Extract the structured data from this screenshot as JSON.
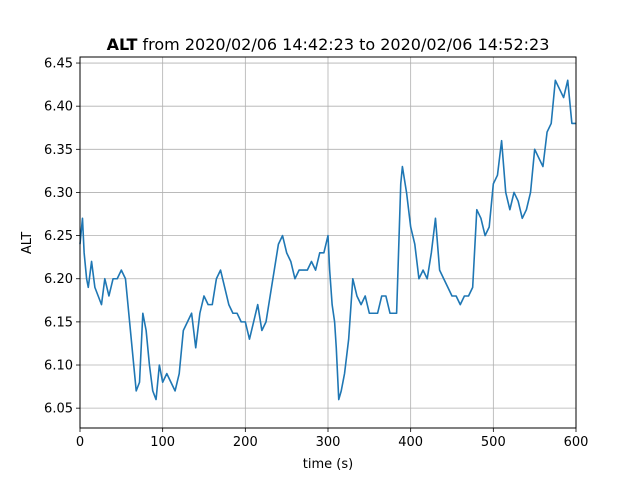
{
  "chart_data": {
    "type": "line",
    "title_bold": "ALT",
    "title_rest": " from 2020/02/06 14:42:23 to 2020/02/06 14:52:23",
    "xlabel": "time (s)",
    "ylabel": "ALT",
    "xlim": [
      0,
      600
    ],
    "ylim": [
      6.027,
      6.457
    ],
    "grid": true,
    "x_ticks": [
      0,
      100,
      200,
      300,
      400,
      500,
      600
    ],
    "x_tick_labels": [
      "0",
      "100",
      "200",
      "300",
      "400",
      "500",
      "600"
    ],
    "y_ticks": [
      6.05,
      6.1,
      6.15,
      6.2,
      6.25,
      6.3,
      6.35,
      6.4,
      6.45
    ],
    "y_tick_labels": [
      "6.05",
      "6.10",
      "6.15",
      "6.20",
      "6.25",
      "6.30",
      "6.35",
      "6.40",
      "6.45"
    ],
    "series": [
      {
        "color": "#1f77b4",
        "x": [
          0,
          3,
          5,
          8,
          10,
          14,
          18,
          22,
          26,
          30,
          35,
          40,
          45,
          50,
          55,
          60,
          65,
          68,
          72,
          76,
          80,
          84,
          88,
          92,
          96,
          100,
          105,
          110,
          115,
          120,
          125,
          130,
          135,
          140,
          145,
          150,
          155,
          160,
          165,
          170,
          175,
          180,
          185,
          190,
          195,
          200,
          205,
          210,
          215,
          220,
          225,
          230,
          235,
          240,
          245,
          250,
          255,
          260,
          265,
          270,
          275,
          280,
          285,
          290,
          295,
          300,
          302,
          305,
          308,
          310,
          313,
          316,
          320,
          325,
          330,
          335,
          340,
          345,
          350,
          355,
          360,
          365,
          370,
          375,
          380,
          383,
          386,
          388,
          390,
          395,
          400,
          405,
          410,
          415,
          420,
          425,
          430,
          435,
          440,
          445,
          450,
          455,
          460,
          465,
          470,
          475,
          480,
          485,
          490,
          495,
          500,
          505,
          510,
          515,
          520,
          525,
          530,
          535,
          540,
          545,
          550,
          555,
          560,
          565,
          570,
          575,
          580,
          585,
          590,
          595,
          600
        ],
        "values": [
          6.24,
          6.27,
          6.23,
          6.2,
          6.19,
          6.22,
          6.19,
          6.18,
          6.17,
          6.2,
          6.18,
          6.2,
          6.2,
          6.21,
          6.2,
          6.15,
          6.1,
          6.07,
          6.08,
          6.16,
          6.14,
          6.1,
          6.07,
          6.06,
          6.1,
          6.08,
          6.09,
          6.08,
          6.07,
          6.09,
          6.14,
          6.15,
          6.16,
          6.12,
          6.16,
          6.18,
          6.17,
          6.17,
          6.2,
          6.21,
          6.19,
          6.17,
          6.16,
          6.16,
          6.15,
          6.15,
          6.13,
          6.15,
          6.17,
          6.14,
          6.15,
          6.18,
          6.21,
          6.24,
          6.25,
          6.23,
          6.22,
          6.2,
          6.21,
          6.21,
          6.21,
          6.22,
          6.21,
          6.23,
          6.23,
          6.25,
          6.21,
          6.17,
          6.15,
          6.12,
          6.06,
          6.07,
          6.09,
          6.13,
          6.2,
          6.18,
          6.17,
          6.18,
          6.16,
          6.16,
          6.16,
          6.18,
          6.18,
          6.16,
          6.16,
          6.16,
          6.25,
          6.31,
          6.33,
          6.3,
          6.26,
          6.24,
          6.2,
          6.21,
          6.2,
          6.23,
          6.27,
          6.21,
          6.2,
          6.19,
          6.18,
          6.18,
          6.17,
          6.18,
          6.18,
          6.19,
          6.28,
          6.27,
          6.25,
          6.26,
          6.31,
          6.32,
          6.36,
          6.3,
          6.28,
          6.3,
          6.29,
          6.27,
          6.28,
          6.3,
          6.35,
          6.34,
          6.33,
          6.37,
          6.38,
          6.43,
          6.42,
          6.41,
          6.43,
          6.38,
          6.38
        ]
      }
    ]
  }
}
